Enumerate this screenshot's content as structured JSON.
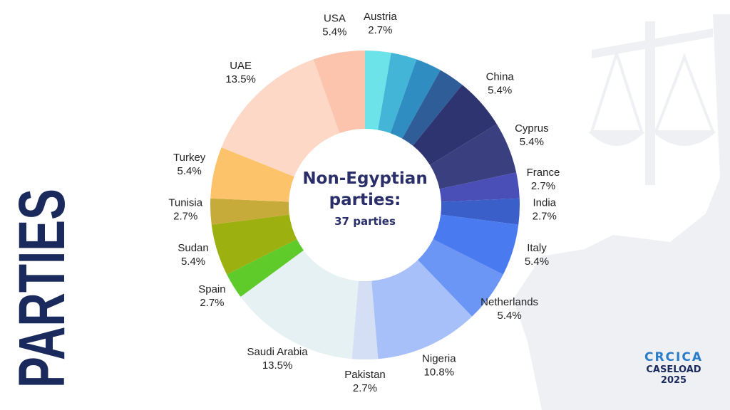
{
  "chart_data": {
    "type": "donut",
    "categories": [
      "Austria",
      null,
      null,
      null,
      "China",
      "Cyprus",
      "France",
      "India",
      "Italy",
      "Netherlands",
      "Nigeria",
      "Pakistan",
      "Saudi Arabia",
      "Spain",
      "Sudan",
      "Tunisia",
      "Turkey",
      "UAE",
      "USA"
    ],
    "values": [
      2.7,
      2.7,
      2.7,
      2.7,
      5.4,
      5.4,
      2.7,
      2.7,
      5.4,
      5.4,
      10.8,
      2.7,
      13.5,
      2.7,
      5.4,
      2.7,
      5.4,
      13.5,
      5.4
    ],
    "value_labels": [
      "2.7%",
      null,
      null,
      null,
      "5.4%",
      "5.4%",
      "2.7%",
      "2.7%",
      "5.4%",
      "5.4%",
      "10.8%",
      "2.7%",
      "13.5%",
      "2.7%",
      "5.4%",
      "2.7%",
      "5.4%",
      "13.5%",
      "5.4%"
    ],
    "colors": [
      "#6ce3e9",
      "#43b6d8",
      "#2f8dc1",
      "#2e5d98",
      "#2e3470",
      "#3a3f80",
      "#4a4fb8",
      "#3a5fc8",
      "#4a7af0",
      "#6b96f5",
      "#a8c0fa",
      "#d4dff5",
      "#e6f1f3",
      "#5ecb2a",
      "#9cb00f",
      "#c6ab3a",
      "#fdc36a",
      "#fed8c6",
      "#fcc4ac"
    ],
    "center_title": "Non-Egyptian parties:",
    "center_subtitle": "37 parties"
  },
  "slide": {
    "side_title": "PARTIES",
    "logo": "CRCICA",
    "logo_line1": "CASELOAD",
    "logo_line2": "2025"
  }
}
